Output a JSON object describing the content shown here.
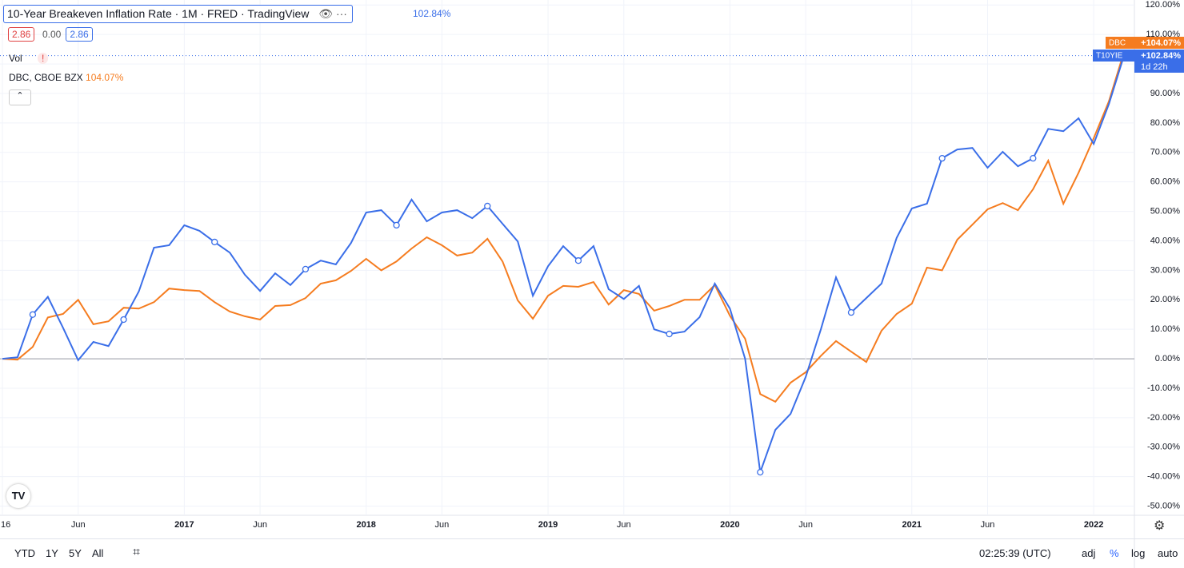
{
  "header": {
    "title": "10-Year Breakeven Inflation Rate · 1M · FRED · TradingView",
    "open": "2.86",
    "change": "0.00",
    "close": "2.86",
    "vol": "Vol",
    "compare_name": "DBC, CBOE BZX",
    "compare_value": "104.07%",
    "main_value": "102.84%"
  },
  "chart_data": {
    "type": "line",
    "categories": [
      "16",
      null,
      null,
      null,
      null,
      "Jun",
      null,
      null,
      null,
      null,
      null,
      null,
      "2017",
      null,
      null,
      null,
      null,
      "Jun",
      null,
      null,
      null,
      null,
      null,
      null,
      "2018",
      null,
      null,
      null,
      null,
      "Jun",
      null,
      null,
      null,
      null,
      null,
      null,
      "2019",
      null,
      null,
      null,
      null,
      "Jun",
      null,
      null,
      null,
      null,
      null,
      null,
      "2020",
      null,
      null,
      null,
      null,
      "Jun",
      null,
      null,
      null,
      null,
      null,
      null,
      "2021",
      null,
      null,
      null,
      null,
      "Jun",
      null,
      null,
      null,
      null,
      null,
      null,
      "2022",
      null,
      null
    ],
    "series": [
      {
        "name": "T10YIE",
        "color": "#3a6ee8",
        "last_label": "+102.84%",
        "countdown": "1d 22h",
        "values": [
          0,
          0.5,
          15,
          21,
          10.5,
          -0.5,
          5.7,
          4.3,
          13.3,
          22.8,
          37.7,
          38.5,
          45.3,
          43.4,
          39.6,
          36,
          28.5,
          23,
          29,
          25,
          30.4,
          33.3,
          32,
          39.3,
          49.6,
          50.4,
          45.3,
          54,
          46.6,
          49.6,
          50.4,
          47.7,
          51.8,
          45.8,
          39.8,
          21.4,
          31.4,
          38.2,
          33.3,
          38.2,
          23.6,
          20.3,
          24.7,
          10,
          8.4,
          9.2,
          14.1,
          25.5,
          17,
          0,
          -38.5,
          -24.1,
          -18.7,
          -6.2,
          10,
          27.6,
          15.7,
          20.6,
          25.5,
          41,
          51,
          52.6,
          68,
          71,
          71.5,
          64.8,
          70.2,
          65.3,
          68,
          78,
          77.2,
          81.6,
          72.9,
          86.4,
          102.84
        ]
      },
      {
        "name": "DBC",
        "color": "#f57c1f",
        "last_label": "+104.07%",
        "values": [
          0,
          -0.3,
          4,
          14,
          15.2,
          20,
          11.7,
          12.7,
          17.3,
          17,
          19.2,
          23.8,
          23.3,
          23,
          19.2,
          16,
          14.4,
          13.3,
          17.9,
          18.2,
          20.6,
          25.5,
          26.6,
          29.8,
          33.9,
          30,
          33,
          37.4,
          41.2,
          38.5,
          35,
          36,
          40.7,
          33,
          19.8,
          13.6,
          21.4,
          24.7,
          24.4,
          26,
          18.4,
          23.3,
          22,
          16.3,
          17.9,
          20,
          20,
          25,
          14.6,
          6.8,
          -12,
          -14.6,
          -8.1,
          -4.6,
          1,
          6,
          2.4,
          -1.1,
          9.5,
          15.2,
          18.7,
          30.9,
          30,
          40.4,
          45.5,
          50.7,
          52.8,
          50.4,
          57.5,
          67.2,
          52.6,
          63.1,
          74.8,
          87.3,
          104.07
        ]
      }
    ],
    "ylim": [
      -53.1,
      121.7
    ],
    "yticks": [
      {
        "value": 120,
        "label": "120.00%"
      },
      {
        "value": 110,
        "label": "110.00%"
      },
      {
        "value": 100,
        "label": "100.00%"
      },
      {
        "value": 90,
        "label": "90.00%"
      },
      {
        "value": 80,
        "label": "80.00%"
      },
      {
        "value": 70,
        "label": "70.00%"
      },
      {
        "value": 60,
        "label": "60.00%"
      },
      {
        "value": 50,
        "label": "50.00%"
      },
      {
        "value": 40,
        "label": "40.00%"
      },
      {
        "value": 30,
        "label": "30.00%"
      },
      {
        "value": 20,
        "label": "20.00%"
      },
      {
        "value": 10,
        "label": "10.00%"
      },
      {
        "value": 0,
        "label": "0.00%"
      },
      {
        "value": -10,
        "label": "-10.00%"
      },
      {
        "value": -20,
        "label": "-20.00%"
      },
      {
        "value": -30,
        "label": "-30.00%"
      },
      {
        "value": -40,
        "label": "-40.00%"
      },
      {
        "value": -50,
        "label": "-50.00%"
      }
    ],
    "grid": true
  },
  "toolbar": {
    "ranges": [
      "YTD",
      "1Y",
      "5Y",
      "All"
    ],
    "time": "02:25:39 (UTC)",
    "options": [
      "adj",
      "%",
      "log",
      "auto"
    ]
  }
}
